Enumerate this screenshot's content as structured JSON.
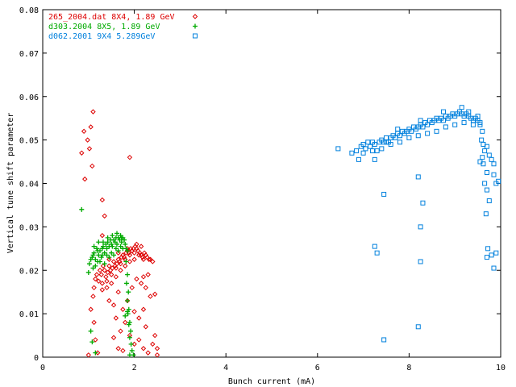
{
  "chart_data": {
    "type": "scatter",
    "xlabel": "Bunch current (mA)",
    "ylabel": "Vertical tune shift parameter",
    "xlim": [
      0,
      10
    ],
    "ylim": [
      0,
      0.08
    ],
    "xticks": [
      "0",
      "2",
      "4",
      "6",
      "8",
      "10"
    ],
    "yticks": [
      "0",
      "0.01",
      "0.02",
      "0.03",
      "0.04",
      "0.05",
      "0.06",
      "0.07",
      "0.08"
    ],
    "grid": false,
    "legend_position": "top-left",
    "series": [
      {
        "name": "265_2004.dat 8X4, 1.89 GeV",
        "marker": "diamond",
        "color": "#dd0000",
        "points": [
          [
            0.85,
            0.047
          ],
          [
            0.9,
            0.052
          ],
          [
            0.92,
            0.041
          ],
          [
            0.98,
            0.05
          ],
          [
            1.02,
            0.048
          ],
          [
            1.05,
            0.053
          ],
          [
            1.1,
            0.0565
          ],
          [
            1.08,
            0.044
          ],
          [
            1.3,
            0.0362
          ],
          [
            1.35,
            0.0325
          ],
          [
            1.3,
            0.028
          ],
          [
            1.9,
            0.046
          ],
          [
            1.1,
            0.014
          ],
          [
            1.05,
            0.011
          ],
          [
            1.12,
            0.008
          ],
          [
            1.15,
            0.004
          ],
          [
            1.2,
            0.001
          ],
          [
            1.0,
            0.0005
          ],
          [
            1.12,
            0.016
          ],
          [
            1.15,
            0.018
          ],
          [
            1.18,
            0.019
          ],
          [
            1.22,
            0.0175
          ],
          [
            1.25,
            0.02
          ],
          [
            1.28,
            0.019
          ],
          [
            1.3,
            0.017
          ],
          [
            1.32,
            0.021
          ],
          [
            1.35,
            0.02
          ],
          [
            1.38,
            0.0185
          ],
          [
            1.42,
            0.0195
          ],
          [
            1.45,
            0.021
          ],
          [
            1.48,
            0.02
          ],
          [
            1.52,
            0.0205
          ],
          [
            1.55,
            0.022
          ],
          [
            1.58,
            0.021
          ],
          [
            1.62,
            0.0215
          ],
          [
            1.65,
            0.0225
          ],
          [
            1.68,
            0.022
          ],
          [
            1.72,
            0.023
          ],
          [
            1.75,
            0.0235
          ],
          [
            1.78,
            0.023
          ],
          [
            1.82,
            0.024
          ],
          [
            1.85,
            0.0245
          ],
          [
            1.88,
            0.024
          ],
          [
            1.92,
            0.025
          ],
          [
            1.95,
            0.0245
          ],
          [
            1.98,
            0.025
          ],
          [
            2.02,
            0.0255
          ],
          [
            2.05,
            0.025
          ],
          [
            2.08,
            0.0245
          ],
          [
            2.12,
            0.024
          ],
          [
            2.15,
            0.0235
          ],
          [
            2.18,
            0.023
          ],
          [
            2.22,
            0.024
          ],
          [
            2.25,
            0.0235
          ],
          [
            2.28,
            0.023
          ],
          [
            2.32,
            0.0225
          ],
          [
            2.35,
            0.0225
          ],
          [
            2.4,
            0.022
          ],
          [
            1.3,
            0.0155
          ],
          [
            1.4,
            0.016
          ],
          [
            1.5,
            0.017
          ],
          [
            1.6,
            0.0185
          ],
          [
            1.7,
            0.02
          ],
          [
            1.8,
            0.021
          ],
          [
            1.9,
            0.022
          ],
          [
            2.0,
            0.0225
          ],
          [
            1.45,
            0.013
          ],
          [
            1.55,
            0.012
          ],
          [
            1.65,
            0.015
          ],
          [
            1.75,
            0.011
          ],
          [
            1.85,
            0.013
          ],
          [
            1.95,
            0.016
          ],
          [
            2.05,
            0.018
          ],
          [
            2.15,
            0.017
          ],
          [
            2.25,
            0.016
          ],
          [
            2.35,
            0.014
          ],
          [
            2.45,
            0.0145
          ],
          [
            2.2,
            0.0185
          ],
          [
            2.3,
            0.019
          ],
          [
            1.6,
            0.009
          ],
          [
            1.7,
            0.006
          ],
          [
            1.8,
            0.008
          ],
          [
            1.9,
            0.005
          ],
          [
            2.0,
            0.003
          ],
          [
            2.1,
            0.004
          ],
          [
            2.2,
            0.002
          ],
          [
            2.3,
            0.001
          ],
          [
            2.4,
            0.003
          ],
          [
            2.5,
            0.0005
          ],
          [
            1.55,
            0.0045
          ],
          [
            1.65,
            0.002
          ],
          [
            1.75,
            0.0015
          ],
          [
            2.45,
            0.005
          ],
          [
            2.5,
            0.002
          ],
          [
            2.0,
            0.0105
          ],
          [
            2.1,
            0.009
          ],
          [
            2.2,
            0.011
          ],
          [
            2.25,
            0.007
          ],
          [
            1.4,
            0.0175
          ],
          [
            1.5,
            0.019
          ],
          [
            1.6,
            0.0205
          ],
          [
            1.7,
            0.0215
          ],
          [
            1.8,
            0.0225
          ],
          [
            1.9,
            0.0235
          ],
          [
            2.0,
            0.024
          ],
          [
            2.1,
            0.0235
          ],
          [
            2.2,
            0.0225
          ],
          [
            1.45,
            0.0225
          ],
          [
            1.65,
            0.024
          ],
          [
            1.85,
            0.025
          ],
          [
            2.05,
            0.026
          ],
          [
            2.15,
            0.0255
          ]
        ]
      },
      {
        "name": "d303.2004 8X5, 1.89 GeV",
        "marker": "plus",
        "color": "#00aa00",
        "points": [
          [
            0.85,
            0.034
          ],
          [
            1.05,
            0.006
          ],
          [
            1.08,
            0.0035
          ],
          [
            1.15,
            0.001
          ],
          [
            1.0,
            0.0195
          ],
          [
            1.02,
            0.0215
          ],
          [
            1.05,
            0.0225
          ],
          [
            1.08,
            0.023
          ],
          [
            1.1,
            0.0205
          ],
          [
            1.12,
            0.024
          ],
          [
            1.15,
            0.0225
          ],
          [
            1.18,
            0.025
          ],
          [
            1.2,
            0.022
          ],
          [
            1.22,
            0.0235
          ],
          [
            1.25,
            0.0245
          ],
          [
            1.28,
            0.023
          ],
          [
            1.3,
            0.025
          ],
          [
            1.32,
            0.0255
          ],
          [
            1.35,
            0.024
          ],
          [
            1.38,
            0.026
          ],
          [
            1.4,
            0.025
          ],
          [
            1.42,
            0.0265
          ],
          [
            1.45,
            0.0255
          ],
          [
            1.48,
            0.027
          ],
          [
            1.5,
            0.026
          ],
          [
            1.52,
            0.0255
          ],
          [
            1.55,
            0.027
          ],
          [
            1.58,
            0.0265
          ],
          [
            1.6,
            0.0275
          ],
          [
            1.62,
            0.026
          ],
          [
            1.65,
            0.0275
          ],
          [
            1.68,
            0.027
          ],
          [
            1.7,
            0.028
          ],
          [
            1.72,
            0.0265
          ],
          [
            1.75,
            0.0275
          ],
          [
            1.78,
            0.027
          ],
          [
            1.8,
            0.026
          ],
          [
            1.82,
            0.025
          ],
          [
            1.85,
            0.0245
          ],
          [
            1.1,
            0.0235
          ],
          [
            1.2,
            0.0245
          ],
          [
            1.3,
            0.0235
          ],
          [
            1.4,
            0.0235
          ],
          [
            1.5,
            0.024
          ],
          [
            1.6,
            0.025
          ],
          [
            1.7,
            0.0255
          ],
          [
            1.15,
            0.021
          ],
          [
            1.25,
            0.022
          ],
          [
            1.35,
            0.0215
          ],
          [
            1.45,
            0.023
          ],
          [
            1.55,
            0.0235
          ],
          [
            1.65,
            0.0245
          ],
          [
            1.75,
            0.025
          ],
          [
            1.82,
            0.022
          ],
          [
            1.85,
            0.019
          ],
          [
            1.83,
            0.017
          ],
          [
            1.87,
            0.015
          ],
          [
            1.85,
            0.013
          ],
          [
            1.88,
            0.011
          ],
          [
            1.86,
            0.01
          ],
          [
            1.9,
            0.008
          ],
          [
            1.88,
            0.0075
          ],
          [
            1.92,
            0.006
          ],
          [
            1.9,
            0.0045
          ],
          [
            1.93,
            0.003
          ],
          [
            1.95,
            0.0015
          ],
          [
            1.9,
            0.0005
          ],
          [
            1.98,
            0.0005
          ],
          [
            1.85,
            0.0105
          ],
          [
            1.8,
            0.0095
          ],
          [
            1.12,
            0.0255
          ],
          [
            1.22,
            0.0265
          ],
          [
            1.32,
            0.0265
          ],
          [
            1.42,
            0.0275
          ],
          [
            1.52,
            0.028
          ],
          [
            1.62,
            0.0285
          ],
          [
            1.72,
            0.0275
          ]
        ]
      },
      {
        "name": "d062.2001 9X4 5.289GeV",
        "marker": "square",
        "color": "#0080dd",
        "points": [
          [
            6.45,
            0.048
          ],
          [
            6.75,
            0.047
          ],
          [
            6.85,
            0.0475
          ],
          [
            6.95,
            0.0485
          ],
          [
            7.0,
            0.049
          ],
          [
            7.05,
            0.048
          ],
          [
            7.1,
            0.0495
          ],
          [
            7.15,
            0.0485
          ],
          [
            7.2,
            0.0495
          ],
          [
            7.25,
            0.049
          ],
          [
            7.3,
            0.0475
          ],
          [
            7.35,
            0.0495
          ],
          [
            7.4,
            0.05
          ],
          [
            7.45,
            0.0495
          ],
          [
            7.5,
            0.0505
          ],
          [
            7.55,
            0.0495
          ],
          [
            7.6,
            0.0505
          ],
          [
            7.65,
            0.051
          ],
          [
            7.7,
            0.0505
          ],
          [
            7.75,
            0.0515
          ],
          [
            7.8,
            0.051
          ],
          [
            7.85,
            0.052
          ],
          [
            7.9,
            0.0515
          ],
          [
            7.95,
            0.052
          ],
          [
            8.0,
            0.0525
          ],
          [
            8.05,
            0.052
          ],
          [
            8.1,
            0.053
          ],
          [
            8.15,
            0.0525
          ],
          [
            8.2,
            0.053
          ],
          [
            8.25,
            0.0535
          ],
          [
            8.3,
            0.053
          ],
          [
            8.35,
            0.054
          ],
          [
            8.4,
            0.0535
          ],
          [
            8.45,
            0.0545
          ],
          [
            8.5,
            0.054
          ],
          [
            8.55,
            0.0545
          ],
          [
            8.6,
            0.055
          ],
          [
            8.65,
            0.0545
          ],
          [
            8.7,
            0.055
          ],
          [
            8.75,
            0.0545
          ],
          [
            8.8,
            0.0555
          ],
          [
            8.85,
            0.055
          ],
          [
            8.9,
            0.0555
          ],
          [
            8.95,
            0.056
          ],
          [
            9.0,
            0.0555
          ],
          [
            9.05,
            0.056
          ],
          [
            9.1,
            0.0565
          ],
          [
            9.15,
            0.056
          ],
          [
            9.2,
            0.0555
          ],
          [
            9.25,
            0.056
          ],
          [
            9.3,
            0.0555
          ],
          [
            9.35,
            0.055
          ],
          [
            9.4,
            0.0545
          ],
          [
            9.45,
            0.055
          ],
          [
            9.5,
            0.0545
          ],
          [
            9.55,
            0.054
          ],
          [
            7.0,
            0.047
          ],
          [
            7.2,
            0.0475
          ],
          [
            7.4,
            0.048
          ],
          [
            7.6,
            0.049
          ],
          [
            7.8,
            0.0495
          ],
          [
            8.0,
            0.0505
          ],
          [
            8.2,
            0.051
          ],
          [
            8.4,
            0.0515
          ],
          [
            8.6,
            0.052
          ],
          [
            8.8,
            0.053
          ],
          [
            9.0,
            0.0535
          ],
          [
            9.2,
            0.054
          ],
          [
            9.4,
            0.0535
          ],
          [
            6.9,
            0.0455
          ],
          [
            7.25,
            0.0455
          ],
          [
            7.5,
            0.0495
          ],
          [
            7.75,
            0.0525
          ],
          [
            8.25,
            0.0545
          ],
          [
            8.75,
            0.0565
          ],
          [
            9.15,
            0.0575
          ],
          [
            9.3,
            0.0565
          ],
          [
            9.5,
            0.0555
          ],
          [
            9.55,
            0.0535
          ],
          [
            9.6,
            0.052
          ],
          [
            9.58,
            0.05
          ],
          [
            9.62,
            0.049
          ],
          [
            9.65,
            0.0475
          ],
          [
            9.6,
            0.046
          ],
          [
            9.62,
            0.0445
          ],
          [
            9.55,
            0.045
          ],
          [
            9.7,
            0.0485
          ],
          [
            9.75,
            0.0465
          ],
          [
            9.8,
            0.0455
          ],
          [
            9.7,
            0.0425
          ],
          [
            9.65,
            0.04
          ],
          [
            9.7,
            0.0385
          ],
          [
            9.75,
            0.036
          ],
          [
            9.85,
            0.0445
          ],
          [
            9.85,
            0.042
          ],
          [
            9.9,
            0.04
          ],
          [
            9.68,
            0.033
          ],
          [
            9.72,
            0.025
          ],
          [
            9.7,
            0.023
          ],
          [
            9.8,
            0.0235
          ],
          [
            9.85,
            0.0205
          ],
          [
            9.9,
            0.024
          ],
          [
            9.95,
            0.0405
          ],
          [
            7.45,
            0.0375
          ],
          [
            8.3,
            0.0355
          ],
          [
            8.2,
            0.0415
          ],
          [
            8.25,
            0.03
          ],
          [
            7.25,
            0.0255
          ],
          [
            7.3,
            0.024
          ],
          [
            8.25,
            0.022
          ],
          [
            8.2,
            0.007
          ],
          [
            7.45,
            0.004
          ]
        ]
      }
    ]
  }
}
